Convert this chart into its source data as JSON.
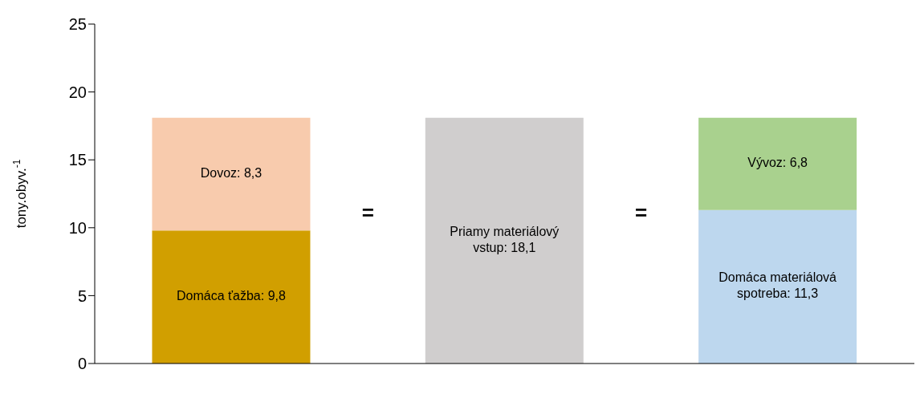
{
  "chart_data": {
    "type": "bar",
    "stacked": true,
    "ylabel": "tony.obyv.$^{-1}$",
    "categories": [
      null,
      null,
      null
    ],
    "series": [
      {
        "colors": [
          "#d19f00",
          "#d0cece",
          "#bdd7ee"
        ],
        "values": [
          9.8,
          18.1,
          11.3
        ],
        "value_labels": [
          "Domáca ťažba: 9,8",
          "Priamy materiálový vstup: 18,1",
          "Domáca materiálová spotreba: 11,3"
        ]
      },
      {
        "colors": [
          "#f8cbad",
          null,
          "#a9d18e"
        ],
        "values": [
          8.3,
          null,
          6.8
        ],
        "value_labels": [
          "Dovoz: 8,3",
          null,
          "Vývoz: 6,8"
        ]
      }
    ],
    "ylim": [
      0,
      25
    ],
    "yticks": [
      0,
      5,
      10,
      15,
      20,
      25
    ],
    "annotations": [
      "=",
      "="
    ]
  }
}
